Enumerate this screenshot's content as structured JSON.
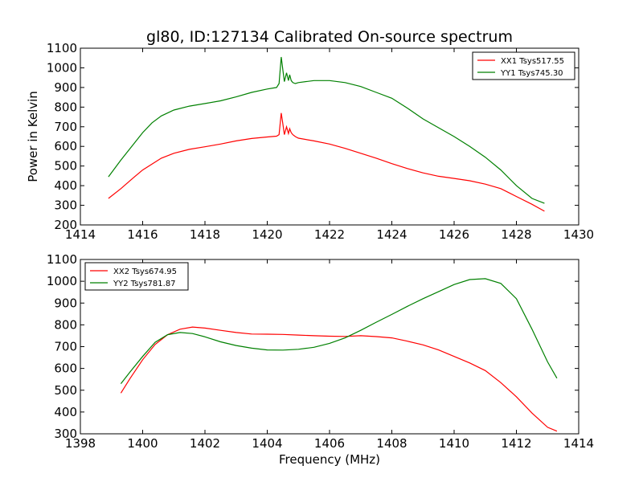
{
  "figure_title": "gl80, ID:127134 Calibrated On-source spectrum",
  "chart_data": [
    {
      "type": "line",
      "title": "gl80, ID:127134 Calibrated On-source spectrum",
      "xlabel": "",
      "ylabel": "Power in Kelvin",
      "xlim": [
        1414,
        1430
      ],
      "ylim": [
        200,
        1100
      ],
      "xticks": [
        1414,
        1416,
        1418,
        1420,
        1422,
        1424,
        1426,
        1428,
        1430
      ],
      "yticks": [
        200,
        300,
        400,
        500,
        600,
        700,
        800,
        900,
        1000,
        1100
      ],
      "grid": false,
      "legend_position": "top-right",
      "series": [
        {
          "name": "XX1 Tsys517.55",
          "color": "#ff0000",
          "x": [
            1414.9,
            1415.3,
            1415.7,
            1416.0,
            1416.3,
            1416.6,
            1417.0,
            1417.5,
            1418.0,
            1418.5,
            1419.0,
            1419.5,
            1420.0,
            1420.3,
            1420.38,
            1420.45,
            1420.5,
            1420.55,
            1420.62,
            1420.68,
            1420.72,
            1420.77,
            1420.82,
            1420.9,
            1421.0,
            1421.5,
            1422.0,
            1422.5,
            1423.0,
            1423.5,
            1424.0,
            1424.5,
            1425.0,
            1425.5,
            1426.0,
            1426.5,
            1427.0,
            1427.5,
            1428.0,
            1428.5,
            1428.9
          ],
          "y": [
            335,
            385,
            440,
            480,
            510,
            540,
            565,
            585,
            598,
            612,
            628,
            640,
            648,
            652,
            660,
            770,
            715,
            660,
            700,
            665,
            690,
            670,
            660,
            650,
            642,
            628,
            612,
            590,
            565,
            540,
            512,
            487,
            465,
            448,
            437,
            425,
            408,
            385,
            345,
            305,
            270
          ]
        },
        {
          "name": "YY1 Tsys745.30",
          "color": "#008000",
          "x": [
            1414.9,
            1415.3,
            1415.7,
            1416.0,
            1416.3,
            1416.6,
            1417.0,
            1417.5,
            1418.0,
            1418.5,
            1419.0,
            1419.5,
            1420.0,
            1420.3,
            1420.38,
            1420.45,
            1420.5,
            1420.55,
            1420.62,
            1420.68,
            1420.72,
            1420.77,
            1420.82,
            1420.9,
            1421.0,
            1421.5,
            1422.0,
            1422.5,
            1423.0,
            1423.5,
            1424.0,
            1424.5,
            1425.0,
            1425.5,
            1426.0,
            1426.5,
            1427.0,
            1427.5,
            1428.0,
            1428.5,
            1428.9
          ],
          "y": [
            445,
            530,
            610,
            670,
            720,
            755,
            785,
            805,
            818,
            832,
            852,
            875,
            892,
            900,
            920,
            1055,
            990,
            930,
            975,
            935,
            965,
            935,
            925,
            920,
            925,
            935,
            935,
            925,
            905,
            875,
            845,
            795,
            740,
            695,
            650,
            600,
            545,
            480,
            400,
            335,
            310
          ]
        }
      ]
    },
    {
      "type": "line",
      "title": "",
      "xlabel": "Frequency (MHz)",
      "ylabel": "",
      "xlim": [
        1398,
        1414
      ],
      "ylim": [
        300,
        1100
      ],
      "xticks": [
        1398,
        1400,
        1402,
        1404,
        1406,
        1408,
        1410,
        1412,
        1414
      ],
      "yticks": [
        300,
        400,
        500,
        600,
        700,
        800,
        900,
        1000,
        1100
      ],
      "grid": false,
      "legend_position": "top-left",
      "series": [
        {
          "name": "XX2 Tsys674.95",
          "color": "#ff0000",
          "x": [
            1399.3,
            1399.6,
            1400.0,
            1400.4,
            1400.8,
            1401.2,
            1401.6,
            1402.0,
            1402.5,
            1403.0,
            1403.5,
            1404.0,
            1404.5,
            1405.0,
            1405.5,
            1406.0,
            1406.5,
            1407.0,
            1407.5,
            1408.0,
            1408.5,
            1409.0,
            1409.5,
            1410.0,
            1410.5,
            1411.0,
            1411.5,
            1412.0,
            1412.5,
            1413.0,
            1413.3
          ],
          "y": [
            487,
            555,
            640,
            710,
            755,
            780,
            790,
            785,
            775,
            765,
            758,
            757,
            756,
            753,
            750,
            748,
            747,
            750,
            746,
            740,
            725,
            708,
            685,
            655,
            625,
            590,
            535,
            470,
            395,
            330,
            312
          ]
        },
        {
          "name": "YY2 Tsys781.87",
          "color": "#008000",
          "x": [
            1399.3,
            1399.6,
            1400.0,
            1400.4,
            1400.8,
            1401.2,
            1401.6,
            1402.0,
            1402.5,
            1403.0,
            1403.5,
            1404.0,
            1404.5,
            1405.0,
            1405.5,
            1406.0,
            1406.5,
            1407.0,
            1407.5,
            1408.0,
            1408.5,
            1409.0,
            1409.5,
            1410.0,
            1410.5,
            1411.0,
            1411.5,
            1412.0,
            1412.5,
            1413.0,
            1413.3
          ],
          "y": [
            530,
            585,
            655,
            720,
            755,
            765,
            760,
            745,
            722,
            705,
            693,
            685,
            684,
            688,
            697,
            715,
            740,
            775,
            812,
            848,
            885,
            920,
            952,
            985,
            1008,
            1012,
            990,
            920,
            780,
            630,
            555
          ]
        }
      ]
    }
  ]
}
